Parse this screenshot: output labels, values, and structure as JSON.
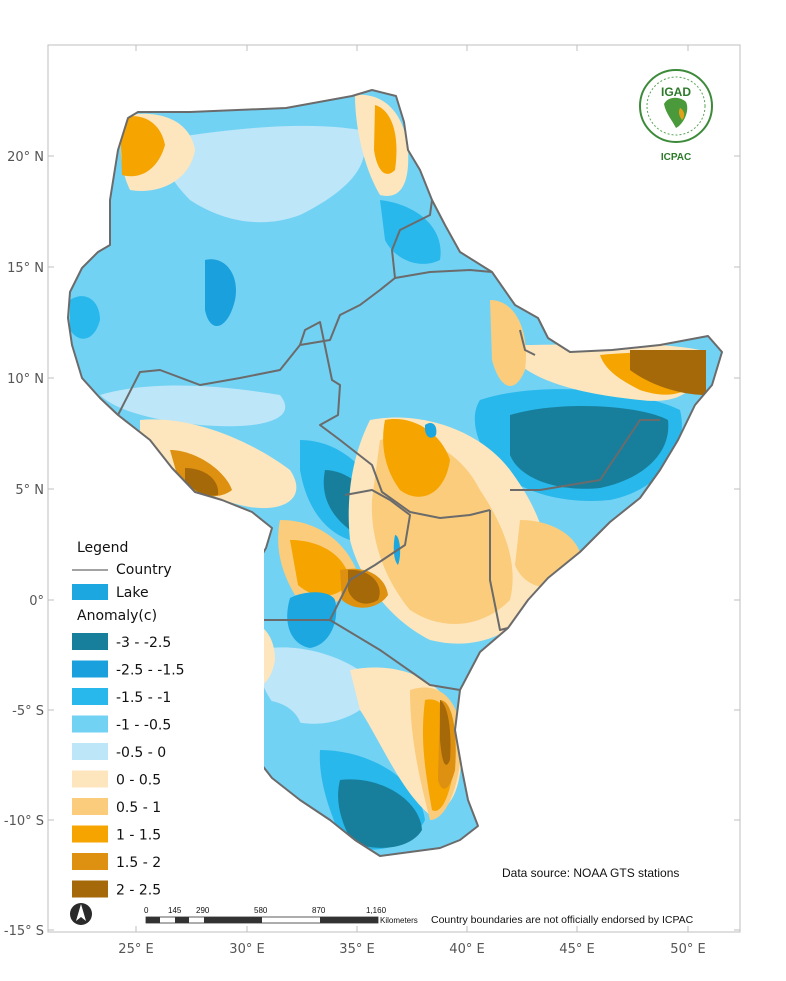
{
  "colors": {
    "neg3": "#177f9c",
    "neg25": "#1aa0dc",
    "neg15": "#29b8ec",
    "neg1": "#72d2f4",
    "neg05": "#bde6f8",
    "pos0": "#fde6bd",
    "pos05": "#fbcc7b",
    "pos1": "#f5a400",
    "pos15": "#de9110",
    "pos2": "#a6690a",
    "lake": "#1ca7e0",
    "border": "#6b6b6b"
  },
  "axes": {
    "lat_labels": [
      "20° N",
      "15° N",
      "10° N",
      "5° N",
      "0°",
      "-5° S",
      "-10° S",
      "-15° S"
    ],
    "lon_labels": [
      "25° E",
      "30° E",
      "35° E",
      "40° E",
      "45° E",
      "50° E"
    ]
  },
  "legend": {
    "title": "Legend",
    "country_label": "Country",
    "lake_label": "Lake",
    "anomaly_title": "Anomaly(c)",
    "classes": [
      {
        "label": "-3 - -2.5",
        "color": "#177f9c"
      },
      {
        "label": "-2.5 - -1.5",
        "color": "#1aa0dc"
      },
      {
        "label": "-1.5 - -1",
        "color": "#29b8ec"
      },
      {
        "label": "-1 - -0.5",
        "color": "#72d2f4"
      },
      {
        "label": "-0.5 - 0",
        "color": "#bde6f8"
      },
      {
        "label": "0 - 0.5",
        "color": "#fde6bd"
      },
      {
        "label": "0.5 - 1",
        "color": "#fbcc7b"
      },
      {
        "label": "1 - 1.5",
        "color": "#f5a400"
      },
      {
        "label": "1.5 - 2",
        "color": "#de9110"
      },
      {
        "label": "2 - 2.5",
        "color": "#a6690a"
      }
    ]
  },
  "source_text": "Data source: NOAA   GTS stations",
  "disclaimer_text": "Country boundaries are not officially endorsed by ICPAC",
  "scale": {
    "ticks": [
      "0",
      "145",
      "290",
      "580",
      "870",
      "1,160"
    ],
    "unit": "Kilometers"
  },
  "logo": {
    "top": "IGAD",
    "bottom": "ICPAC"
  }
}
